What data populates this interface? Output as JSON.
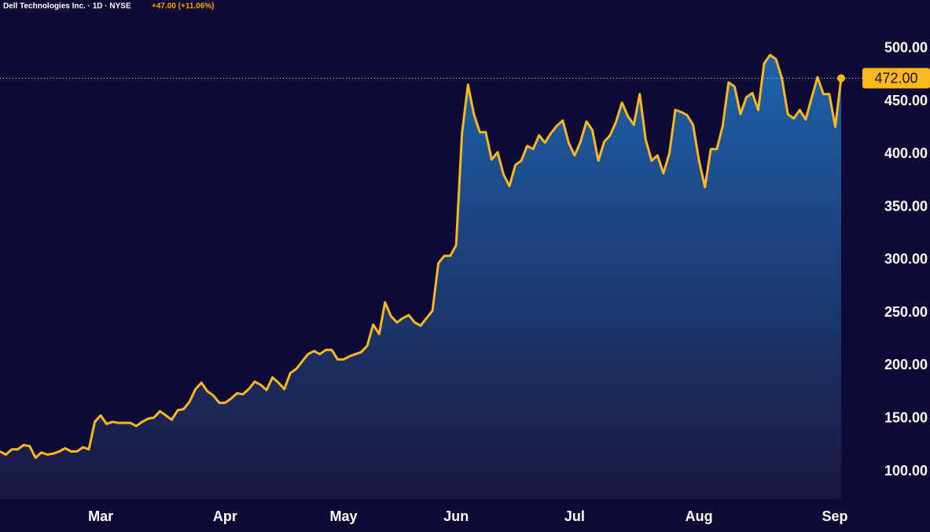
{
  "chart_data": {
    "type": "area",
    "title": "Dell Technologies Inc. · 1D · NYSE",
    "change": "+47.00 (+11.06%)",
    "last_label": "472.00",
    "categories": [
      null,
      null,
      null,
      null,
      null,
      null,
      null,
      null,
      null,
      null,
      null,
      null,
      null,
      null,
      null,
      null,
      null,
      "Mar",
      null,
      null,
      null,
      null,
      null,
      null,
      null,
      null,
      null,
      null,
      null,
      null,
      null,
      null,
      null,
      null,
      null,
      null,
      null,
      null,
      "Apr",
      null,
      null,
      null,
      null,
      null,
      null,
      null,
      null,
      null,
      null,
      null,
      null,
      null,
      null,
      null,
      null,
      null,
      null,
      null,
      "May",
      null,
      null,
      null,
      null,
      null,
      null,
      null,
      null,
      null,
      null,
      null,
      null,
      null,
      null,
      null,
      null,
      null,
      null,
      "Jun",
      null,
      null,
      null,
      null,
      null,
      null,
      null,
      null,
      null,
      null,
      null,
      null,
      null,
      null,
      null,
      null,
      null,
      null,
      null,
      "Jul",
      null,
      null,
      null,
      null,
      null,
      null,
      null,
      null,
      null,
      null,
      null,
      null,
      null,
      null,
      null,
      null,
      null,
      null,
      null,
      null,
      "Aug",
      null,
      null,
      null,
      null,
      null,
      null,
      null,
      null,
      null,
      null,
      null,
      null,
      null,
      null,
      null,
      null,
      null,
      null,
      null,
      null,
      null,
      null,
      null,
      "Sep"
    ],
    "series": [
      {
        "name": "DELL",
        "color": "#f9b81c",
        "values": [
          119,
          116,
          121,
          121,
          125,
          124,
          113,
          118,
          116,
          117,
          119,
          122,
          119,
          119,
          123,
          121,
          147,
          153,
          145,
          147,
          146,
          146,
          146,
          143,
          147,
          150,
          151,
          157,
          153,
          149,
          158,
          159,
          166,
          178,
          184,
          176,
          172,
          165,
          165,
          169,
          174,
          173,
          178,
          185,
          182,
          177,
          189,
          184,
          178,
          193,
          197,
          204,
          211,
          214,
          211,
          215,
          215,
          206,
          206,
          209,
          211,
          213,
          219,
          239,
          230,
          260,
          247,
          241,
          245,
          248,
          241,
          238,
          245,
          252,
          297,
          304,
          304,
          314,
          420,
          466,
          438,
          421,
          421,
          395,
          402,
          381,
          370,
          390,
          394,
          408,
          405,
          418,
          411,
          420,
          427,
          432,
          411,
          399,
          412,
          431,
          423,
          394,
          412,
          418,
          431,
          449,
          436,
          428,
          457,
          414,
          394,
          399,
          382,
          401,
          442,
          440,
          437,
          428,
          394,
          369,
          405,
          405,
          427,
          468,
          464,
          438,
          454,
          458,
          442,
          486,
          494,
          490,
          472,
          438,
          434,
          442,
          433,
          453,
          473,
          457,
          457,
          426,
          472
        ]
      }
    ],
    "ylim": [
      74,
      546
    ],
    "yticks": [
      {
        "value": 100,
        "label": "100.00"
      },
      {
        "value": 150,
        "label": "150.00"
      },
      {
        "value": 200,
        "label": "200.00"
      },
      {
        "value": 250,
        "label": "250.00"
      },
      {
        "value": 300,
        "label": "300.00"
      },
      {
        "value": 350,
        "label": "350.00"
      },
      {
        "value": 400,
        "label": "400.00"
      },
      {
        "value": 450,
        "label": "450.00"
      },
      {
        "value": 500,
        "label": "500.00"
      }
    ]
  }
}
